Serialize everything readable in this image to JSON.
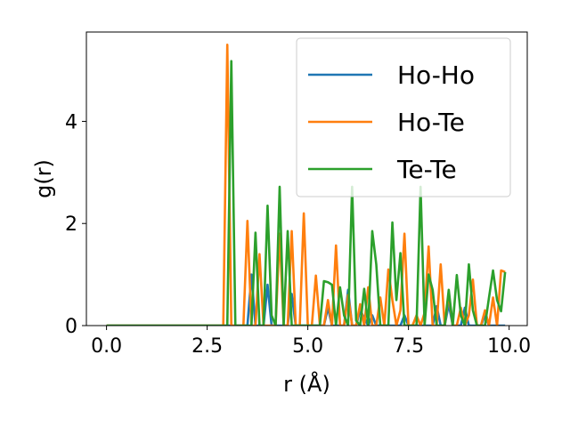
{
  "chart_data": {
    "type": "line",
    "xlabel": "r (Å)",
    "ylabel": "g(r)",
    "xlim": [
      -0.5,
      10.45
    ],
    "ylim": [
      0,
      5.75
    ],
    "xticks": [
      "0.0",
      "2.5",
      "5.0",
      "7.5",
      "10.0"
    ],
    "yticks": [
      "0",
      "2",
      "4"
    ],
    "xtick_values": [
      0,
      2.5,
      5,
      7.5,
      10
    ],
    "ytick_values": [
      0,
      2,
      4
    ],
    "grid": false,
    "legend_position": "top-right",
    "series": [
      {
        "name": "Ho-Ho",
        "color": "#1f77b4",
        "x": [
          0,
          3.5,
          3.6,
          3.7,
          3.9,
          4.0,
          4.1,
          4.5,
          4.6,
          4.7,
          5.4,
          5.5,
          5.6,
          5.9,
          6.0,
          6.1,
          6.2,
          6.3,
          6.5,
          6.6,
          6.7,
          7.3,
          7.4,
          7.5,
          8.1,
          8.2,
          8.3,
          8.4,
          8.5,
          8.6,
          8.8,
          8.9,
          9.0,
          9.3,
          9.4,
          9.5,
          9.9
        ],
        "y": [
          0,
          0,
          1.0,
          0,
          0,
          0.8,
          0,
          0,
          0.62,
          0,
          0,
          0.35,
          0,
          0,
          0.7,
          0,
          0,
          0.3,
          0,
          0.2,
          0,
          0,
          0.2,
          0,
          0,
          0.38,
          0,
          0,
          0.42,
          0,
          0,
          0.35,
          0,
          0,
          0.2,
          0,
          0
        ]
      },
      {
        "name": "Ho-Te",
        "color": "#ff7f0e",
        "x": [
          0,
          2.9,
          3.0,
          3.1,
          3.2,
          3.3,
          3.4,
          3.5,
          3.6,
          3.7,
          3.8,
          3.9,
          4.0,
          4.1,
          4.2,
          4.3,
          4.4,
          4.5,
          4.6,
          4.7,
          4.8,
          4.9,
          5.0,
          5.1,
          5.2,
          5.3,
          5.4,
          5.5,
          5.6,
          5.7,
          5.8,
          5.9,
          6.0,
          6.1,
          6.2,
          6.3,
          6.4,
          6.5,
          6.6,
          6.7,
          6.8,
          6.9,
          7.0,
          7.1,
          7.2,
          7.3,
          7.4,
          7.5,
          7.6,
          7.7,
          7.8,
          7.9,
          8.0,
          8.1,
          8.2,
          8.3,
          8.4,
          8.5,
          8.6,
          8.7,
          8.8,
          8.9,
          9.0,
          9.1,
          9.2,
          9.3,
          9.4,
          9.5,
          9.6,
          9.7,
          9.8,
          9.9
        ],
        "y": [
          0,
          0,
          5.5,
          0,
          0,
          0,
          0,
          2.05,
          0,
          0,
          1.4,
          0,
          0,
          0,
          0,
          1.8,
          0,
          0,
          1.85,
          0,
          0,
          2.2,
          0,
          0,
          0.98,
          0,
          0,
          0.5,
          0,
          1.57,
          0,
          0,
          0.6,
          0,
          0,
          0.42,
          0,
          0.75,
          0,
          0,
          0.55,
          0,
          1.1,
          0.5,
          0,
          0.3,
          1.8,
          0,
          0,
          0.2,
          0,
          0.25,
          1.55,
          0,
          0,
          1.2,
          0,
          0.62,
          0,
          0,
          0.35,
          0,
          0.2,
          0.9,
          0,
          0,
          0.3,
          0,
          0.55,
          0,
          1.08,
          1.05
        ]
      },
      {
        "name": "Te-Te",
        "color": "#2ca02c",
        "x": [
          0,
          3.0,
          3.1,
          3.2,
          3.3,
          3.4,
          3.5,
          3.6,
          3.7,
          3.8,
          3.9,
          4.0,
          4.1,
          4.2,
          4.3,
          4.4,
          4.5,
          4.6,
          4.7,
          4.8,
          4.9,
          5.0,
          5.1,
          5.2,
          5.3,
          5.4,
          5.5,
          5.6,
          5.7,
          5.8,
          5.9,
          6.0,
          6.1,
          6.2,
          6.3,
          6.4,
          6.5,
          6.6,
          6.7,
          6.8,
          6.9,
          7.0,
          7.1,
          7.2,
          7.3,
          7.4,
          7.5,
          7.6,
          7.7,
          7.8,
          7.9,
          8.0,
          8.1,
          8.2,
          8.3,
          8.4,
          8.5,
          8.6,
          8.7,
          8.8,
          8.9,
          9.0,
          9.1,
          9.2,
          9.3,
          9.4,
          9.5,
          9.6,
          9.7,
          9.8,
          9.9
        ],
        "y": [
          0,
          0,
          5.18,
          0,
          0,
          0,
          0,
          0,
          1.82,
          0,
          0,
          2.35,
          0.2,
          0,
          2.72,
          0,
          1.85,
          0,
          0,
          0,
          0,
          0,
          0,
          0,
          0,
          0.87,
          0.85,
          0.8,
          0,
          0.75,
          0.2,
          0,
          2.72,
          0.1,
          0,
          0.72,
          0,
          1.85,
          1.2,
          0,
          0,
          0,
          2.02,
          0.5,
          1.42,
          0,
          0,
          0,
          0,
          2.72,
          0,
          1.0,
          0.7,
          0,
          0,
          0,
          0.7,
          0,
          0.99,
          0.2,
          0,
          1.2,
          0.3,
          0,
          0,
          0,
          0.55,
          1.08,
          0.5,
          0.28,
          1.05
        ]
      }
    ]
  }
}
